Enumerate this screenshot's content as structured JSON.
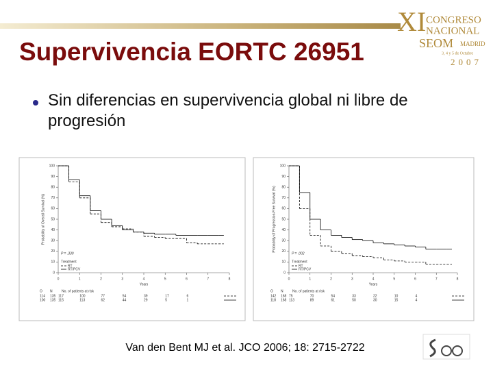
{
  "title": "Supervivencia EORTC 26951",
  "bullet": "Sin diferencias en supervivencia global ni libre de progresión",
  "citation": "Van den Bent MJ et al. JCO 2006; 18: 2715-2722",
  "logo": {
    "numeral": "XI",
    "line1": "CONGRESO",
    "line2": "NACIONAL",
    "society": "SEOM",
    "city": "MADRID",
    "dates": "3, 4 y 5 de Octubre",
    "year": "2007"
  },
  "chart_data": [
    {
      "type": "line",
      "step": true,
      "y_label": "Probability of Overall Survival (%)",
      "x_label": "Years",
      "annotation": "P = .330",
      "legend_title": "Treatment",
      "x": [
        0,
        0.5,
        1,
        1.5,
        2,
        2.5,
        3,
        3.5,
        4,
        4.5,
        5,
        5.5,
        6,
        6.5,
        7,
        7.5
      ],
      "series": [
        {
          "name": "RT",
          "color": "#000000",
          "dashed": true,
          "values": [
            100,
            85,
            70,
            55,
            47,
            43,
            41,
            38,
            34,
            33,
            32,
            32,
            28,
            27,
            27,
            27
          ]
        },
        {
          "name": "RT/PCV",
          "color": "#000000",
          "dashed": false,
          "values": [
            100,
            87,
            72,
            58,
            50,
            44,
            40,
            38,
            37,
            36,
            36,
            35,
            35,
            35,
            35,
            35
          ]
        }
      ],
      "xlim": [
        0,
        8
      ],
      "xticks": [
        0,
        1,
        2,
        3,
        4,
        5,
        6,
        7,
        8
      ],
      "ylim": [
        0,
        100
      ],
      "yticks": [
        0,
        10,
        20,
        30,
        40,
        50,
        60,
        70,
        80,
        90,
        100
      ],
      "risk_table": {
        "header": [
          "O",
          "N",
          "No. of patients at risk"
        ],
        "rows": [
          [
            114,
            135,
            117,
            100,
            77,
            54,
            39,
            17,
            6
          ],
          [
            100,
            135,
            115,
            113,
            62,
            44,
            29,
            5,
            1
          ]
        ]
      }
    },
    {
      "type": "line",
      "step": true,
      "y_label": "Probability of Progression-Free Survival (%)",
      "x_label": "Years",
      "annotation": "P = .002",
      "legend_title": "Treatment",
      "x": [
        0,
        0.5,
        1,
        1.5,
        2,
        2.5,
        3,
        3.5,
        4,
        4.5,
        5,
        5.5,
        6,
        6.5,
        7,
        7.5
      ],
      "series": [
        {
          "name": "RT",
          "color": "#000000",
          "dashed": true,
          "values": [
            100,
            60,
            35,
            25,
            20,
            18,
            16,
            15,
            14,
            12,
            11,
            10,
            10,
            8,
            8,
            8
          ]
        },
        {
          "name": "RT/PCV",
          "color": "#000000",
          "dashed": false,
          "values": [
            100,
            75,
            50,
            40,
            35,
            33,
            31,
            30,
            28,
            27,
            26,
            25,
            24,
            22,
            22,
            22
          ]
        }
      ],
      "xlim": [
        0,
        8
      ],
      "xticks": [
        0,
        1,
        2,
        3,
        4,
        5,
        6,
        7,
        8
      ],
      "ylim": [
        0,
        100
      ],
      "yticks": [
        0,
        10,
        20,
        30,
        40,
        50,
        60,
        70,
        80,
        90,
        100
      ],
      "risk_table": {
        "header": [
          "O",
          "N",
          "No. of patients at risk"
        ],
        "rows": [
          [
            142,
            168,
            75,
            70,
            54,
            33,
            22,
            10,
            4
          ],
          [
            118,
            168,
            113,
            89,
            61,
            50,
            30,
            15,
            4
          ]
        ]
      }
    }
  ]
}
